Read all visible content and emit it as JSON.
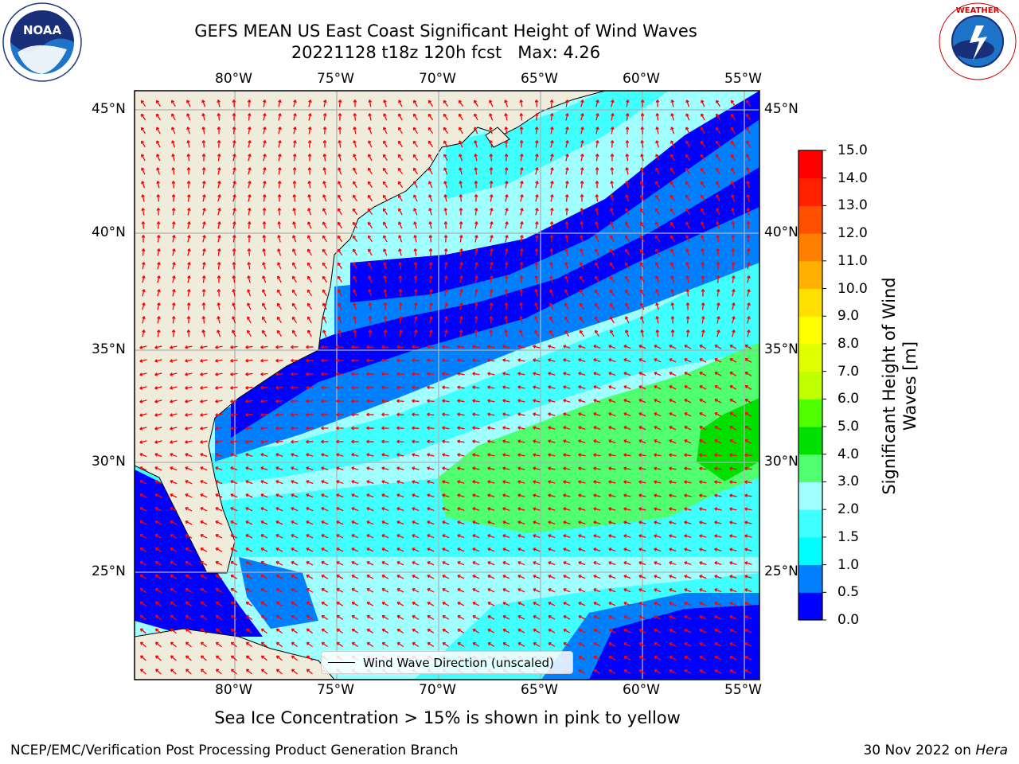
{
  "title": {
    "line1": "GEFS MEAN US East Coast Significant Height of Wind Waves",
    "line2": "20221128 t18z 120h fcst   Max: 4.26"
  },
  "logos": {
    "left": {
      "name": "noaa-logo",
      "text": "NOAA"
    },
    "right": {
      "name": "nws-logo",
      "text": "NATIONAL WEATHER SERVICE"
    }
  },
  "map": {
    "lon_labels": [
      "80°W",
      "75°W",
      "70°W",
      "65°W",
      "60°W",
      "55°W"
    ],
    "lat_labels": [
      "45°N",
      "40°N",
      "35°N",
      "30°N",
      "25°N"
    ],
    "lon_range": [
      -85,
      -54.5
    ],
    "lat_range": [
      20.5,
      46.5
    ],
    "land_color": "#efecdc",
    "arrow_color": "#ff0000",
    "legend_label": "Wind Wave Direction (unscaled)"
  },
  "colorbar": {
    "label": "Significant Height of Wind Waves [m]",
    "tick_labels": [
      "0.0",
      "0.5",
      "1.0",
      "1.5",
      "2.0",
      "3.0",
      "4.0",
      "5.0",
      "6.0",
      "7.0",
      "8.0",
      "9.0",
      "10.0",
      "11.0",
      "12.0",
      "13.0",
      "14.0",
      "15.0"
    ],
    "colors": [
      "#0000ff",
      "#0080ff",
      "#00ffff",
      "#40ffff",
      "#a0ffff",
      "#50ff70",
      "#00e000",
      "#50ff00",
      "#c0ff00",
      "#e0ff00",
      "#ffff00",
      "#ffe000",
      "#ffb000",
      "#ff8000",
      "#ff5000",
      "#ff2000",
      "#ff0000"
    ]
  },
  "caption": "Sea Ice Concentration > 15% is shown in pink to yellow",
  "footer": {
    "left": "NCEP/EMC/Verification Post Processing Product Generation Branch",
    "right_date": "30 Nov 2022 on ",
    "right_host": "Hera"
  }
}
